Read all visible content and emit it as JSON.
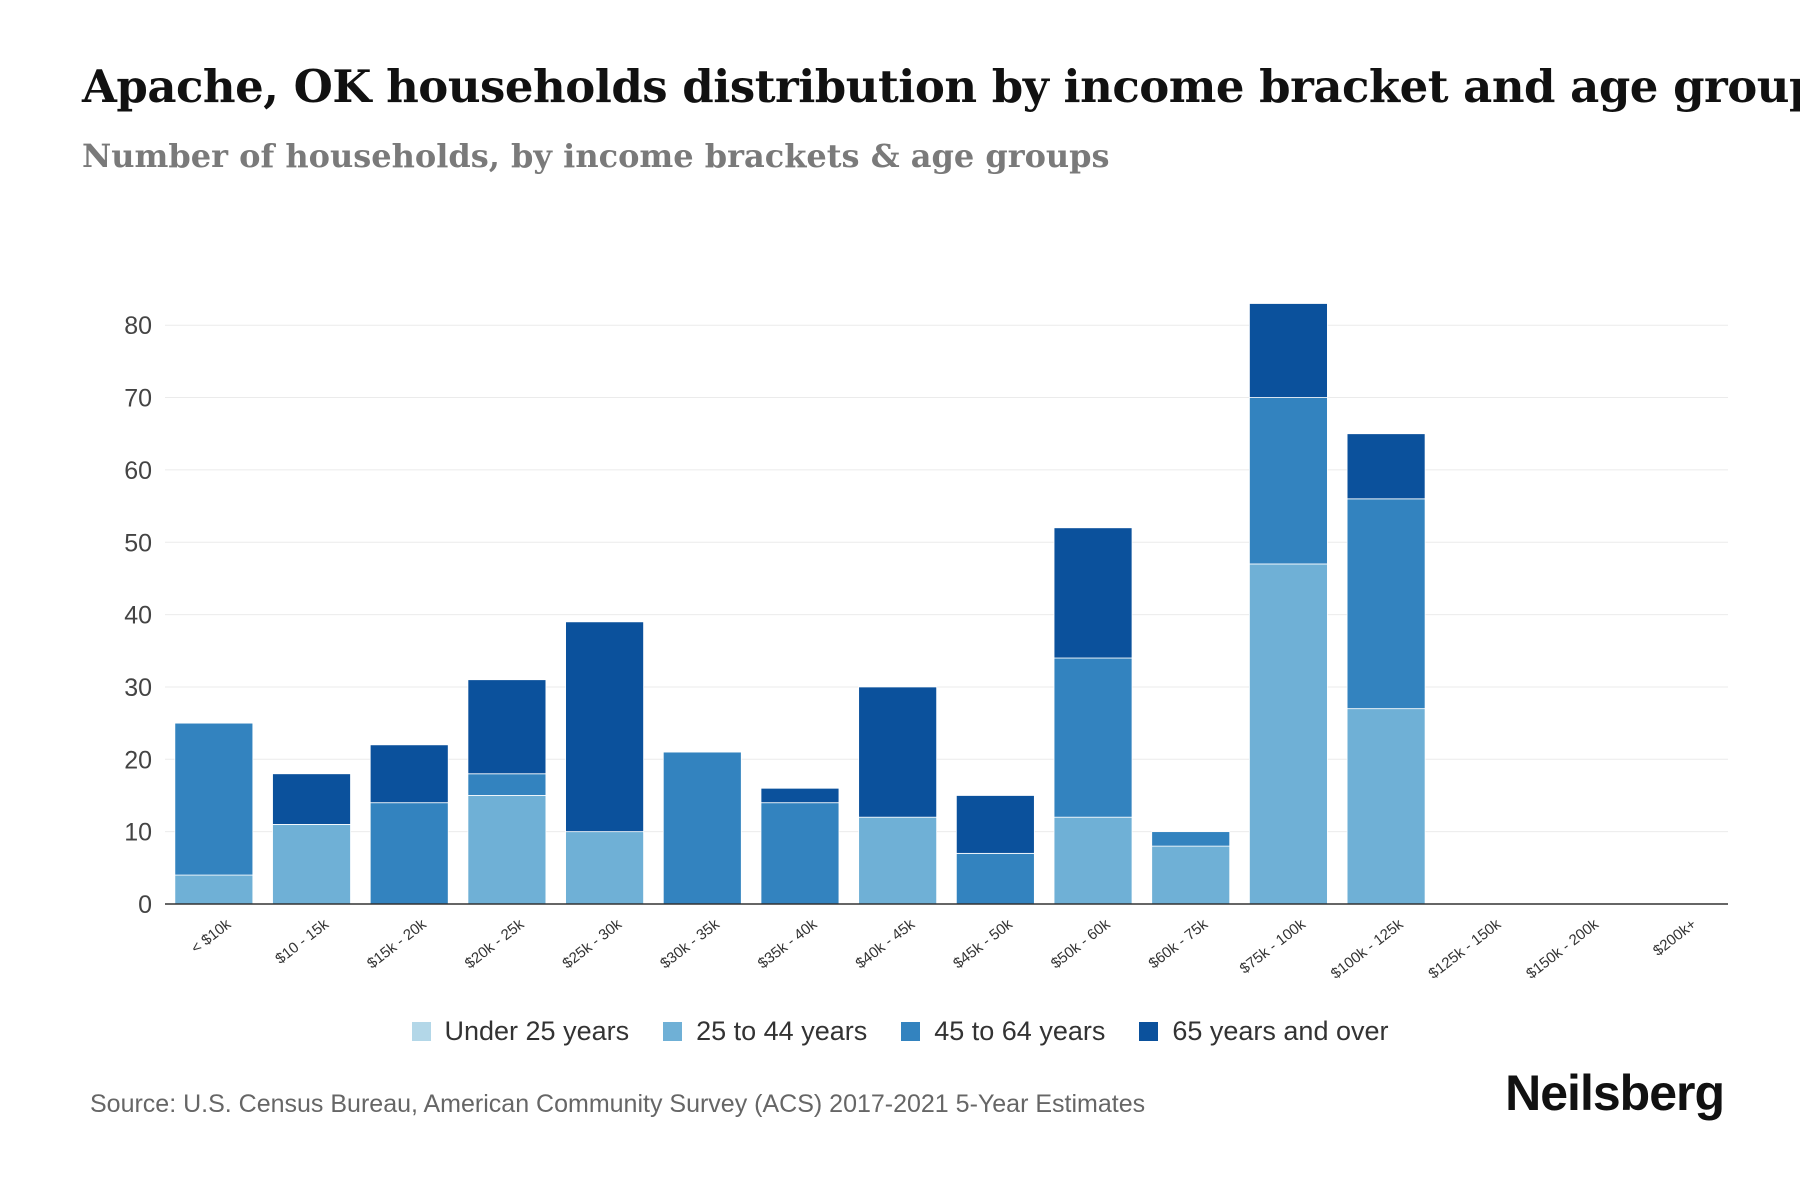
{
  "title": "Apache, OK households distribution by income bracket and age group",
  "subtitle": "Number of households, by income brackets & age groups",
  "source": "Source: U.S. Census Bureau, American Community Survey (ACS) 2017-2021 5-Year Estimates",
  "brand": "Neilsberg",
  "chart_data": {
    "type": "bar",
    "stacked": true,
    "title": "Apache, OK households distribution by income bracket and age group",
    "xlabel": "",
    "ylabel": "",
    "ylim": [
      0,
      85
    ],
    "yticks": [
      0,
      10,
      20,
      30,
      40,
      50,
      60,
      70,
      80
    ],
    "grid": true,
    "legend_position": "bottom-center",
    "categories": [
      "< $10k",
      "$10 - 15k",
      "$15k - 20k",
      "$20k - 25k",
      "$25k - 30k",
      "$30k - 35k",
      "$35k - 40k",
      "$40k - 45k",
      "$45k - 50k",
      "$50k - 60k",
      "$60k - 75k",
      "$75k - 100k",
      "$100k - 125k",
      "$125k - 150k",
      "$150k - 200k",
      "$200k+"
    ],
    "series": [
      {
        "name": "Under 25 years",
        "color": "#b3d7e8",
        "values": [
          0,
          0,
          0,
          0,
          0,
          0,
          0,
          0,
          0,
          0,
          0,
          0,
          0,
          0,
          0,
          0
        ]
      },
      {
        "name": "25 to 44 years",
        "color": "#6fb0d6",
        "values": [
          4,
          11,
          0,
          15,
          10,
          0,
          0,
          12,
          0,
          12,
          8,
          47,
          27,
          0,
          0,
          0
        ]
      },
      {
        "name": "45 to 64 years",
        "color": "#3383bf",
        "values": [
          21,
          0,
          14,
          3,
          0,
          21,
          14,
          0,
          7,
          22,
          2,
          23,
          29,
          0,
          0,
          0
        ]
      },
      {
        "name": "65 years and over",
        "color": "#0b519c",
        "values": [
          0,
          7,
          8,
          13,
          29,
          0,
          2,
          18,
          8,
          18,
          0,
          13,
          9,
          0,
          0,
          0
        ]
      }
    ]
  }
}
